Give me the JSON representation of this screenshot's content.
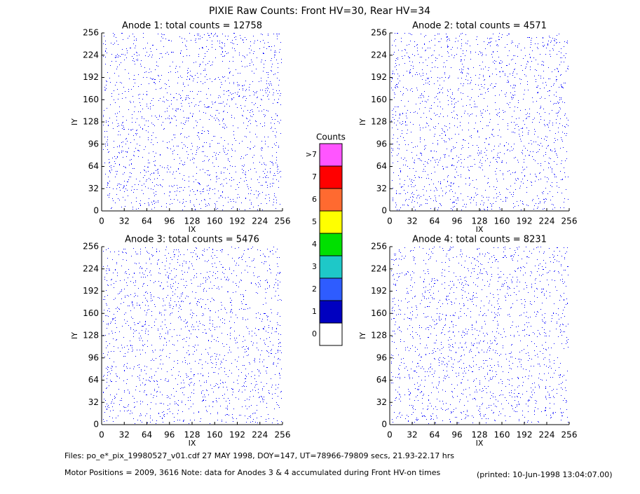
{
  "title": "PIXIE Raw Counts:  Front HV=30, Rear HV=34",
  "chart_data": [
    {
      "type": "scatter",
      "title": "Anode 1: total counts = 12758",
      "xlabel": "IX",
      "ylabel": "IY",
      "color": "#0000ff",
      "xlim": [
        0,
        256
      ],
      "ylim": [
        0,
        256
      ],
      "xticks": [
        0,
        32,
        64,
        96,
        128,
        160,
        192,
        224,
        256
      ],
      "yticks": [
        0,
        32,
        64,
        96,
        128,
        160,
        192,
        224,
        256
      ]
    },
    {
      "type": "scatter",
      "title": "Anode 2: total counts = 4571",
      "xlabel": "IX",
      "ylabel": "IY",
      "color": "#0000ff",
      "xlim": [
        0,
        256
      ],
      "ylim": [
        0,
        256
      ],
      "xticks": [
        0,
        32,
        64,
        96,
        128,
        160,
        192,
        224,
        256
      ],
      "yticks": [
        0,
        32,
        64,
        96,
        128,
        160,
        192,
        224,
        256
      ]
    },
    {
      "type": "scatter",
      "title": "Anode 3: total counts = 5476",
      "xlabel": "IX",
      "ylabel": "IY",
      "color": "#0000ff",
      "xlim": [
        0,
        256
      ],
      "ylim": [
        0,
        256
      ],
      "xticks": [
        0,
        32,
        64,
        96,
        128,
        160,
        192,
        224,
        256
      ],
      "yticks": [
        0,
        32,
        64,
        96,
        128,
        160,
        192,
        224,
        256
      ]
    },
    {
      "type": "scatter",
      "title": "Anode 4: total counts = 8231",
      "xlabel": "IX",
      "ylabel": "IY",
      "color": "#0000ff",
      "xlim": [
        0,
        256
      ],
      "ylim": [
        0,
        256
      ],
      "xticks": [
        0,
        32,
        64,
        96,
        128,
        160,
        192,
        224,
        256
      ],
      "yticks": [
        0,
        32,
        64,
        96,
        128,
        160,
        192,
        224,
        256
      ]
    },
    {
      "type": "colorbar",
      "title": "Counts",
      "categories": [
        "0",
        "1",
        "2",
        "3",
        "4",
        "5",
        "6",
        "7",
        ">7"
      ],
      "colors": [
        "#ffffff",
        "#0000c0",
        "#2e5cff",
        "#1ec8c8",
        "#00e000",
        "#ffff00",
        "#ff6a30",
        "#ff0000",
        "#ff55ff"
      ]
    }
  ],
  "footer": {
    "files": "Files: po_e*_pix_19980527_v01.cdf    27 MAY 1998, DOY=147, UT=78966-79809 secs, 21.93-22.17 hrs",
    "motor": "Motor Positions = 2009, 3616   Note: data for Anodes 3 & 4 accumulated during Front HV-on times",
    "printed": "(printed: 10-Jun-1998 13:04:07.00)"
  }
}
